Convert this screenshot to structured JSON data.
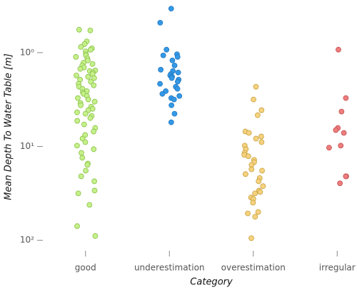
{
  "chart_data": {
    "type": "strip",
    "x_label": "Category",
    "y_label": "Mean Depth To Water Table [m]",
    "categories": [
      "good",
      "underestimation",
      "overestimation",
      "irregular"
    ],
    "colors": [
      "#c5f08a",
      "#3399e6",
      "#f5d27e",
      "#ee7d7d"
    ],
    "edge_colors": [
      "#8ac04a",
      "#2277c0",
      "#c8a040",
      "#c05050"
    ],
    "values": [
      [
        0.57,
        0.58,
        0.76,
        0.81,
        0.87,
        0.9,
        0.93,
        0.97,
        1.04,
        1.07,
        1.11,
        1.15,
        1.21,
        1.28,
        1.32,
        1.37,
        1.44,
        1.49,
        1.55,
        1.57,
        1.63,
        1.69,
        1.75,
        1.81,
        1.87,
        1.94,
        2.04,
        2.15,
        2.23,
        2.31,
        2.43,
        2.57,
        2.66,
        2.75,
        2.9,
        3.05,
        3.16,
        3.33,
        3.45,
        3.64,
        3.76,
        3.97,
        4.11,
        4.33,
        4.48,
        4.72,
        4.98,
        5.33,
        5.82,
        6.35,
        6.93,
        7.56,
        8.25,
        9.0,
        9.8,
        10.7,
        11.7,
        13.2,
        15.2,
        15.7,
        18.1,
        20.8,
        23.5,
        29.5,
        31.6,
        41.9,
        70.6,
        89.8
      ],
      [
        0.34,
        0.48,
        0.93,
        1.04,
        1.07,
        1.11,
        1.21,
        1.37,
        1.52,
        1.57,
        1.63,
        1.69,
        1.75,
        1.81,
        1.87,
        1.94,
        2.04,
        2.15,
        2.31,
        2.43,
        2.57,
        2.75,
        2.9,
        3.05,
        3.16,
        3.64,
        4.48,
        5.53
      ],
      [
        2.31,
        3.16,
        4.11,
        4.64,
        6.93,
        7.17,
        7.83,
        8.25,
        9.0,
        9.8,
        10.7,
        11.7,
        12.3,
        12.7,
        13.9,
        14.7,
        15.7,
        17.5,
        18.1,
        19.7,
        21.7,
        23.5,
        26.5,
        29.5,
        30.5,
        31.6,
        35.0,
        36.3,
        39.7,
        49.9,
        51.7,
        56.1,
        94.9
      ],
      [
        0.93,
        3.05,
        4.25,
        6.35,
        6.69,
        7.17,
        9.8,
        10.3,
        20.8,
        20.8,
        24.7
      ]
    ],
    "y_scale": "log",
    "y_inverted": true,
    "ylim": [
      0.3,
      125
    ],
    "yticks": [
      {
        "value": 1,
        "label": "10⁰"
      },
      {
        "value": 10,
        "label": "10¹"
      },
      {
        "value": 100,
        "label": "10²"
      }
    ]
  }
}
